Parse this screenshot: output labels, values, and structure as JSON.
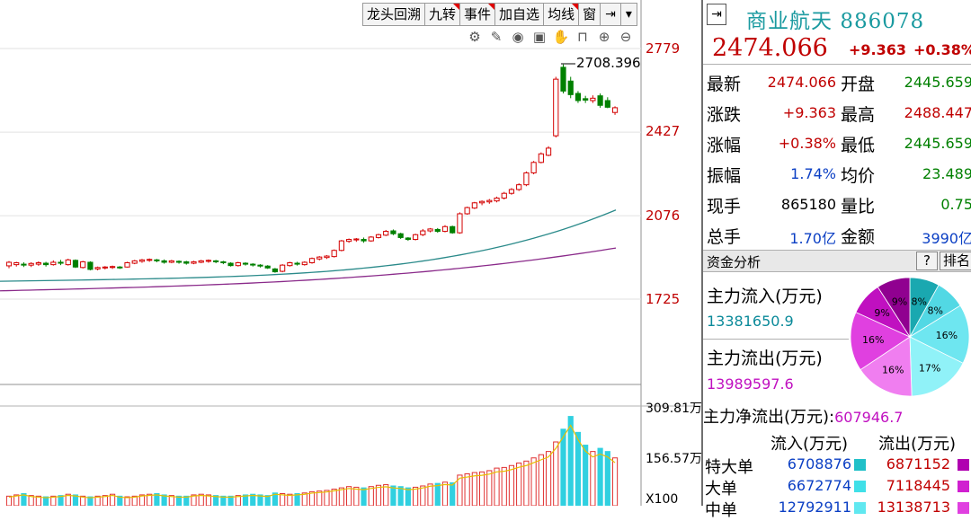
{
  "toolbar": {
    "items": [
      "龙头回溯",
      "九转",
      "事件",
      "加自选",
      "均线",
      "窗"
    ]
  },
  "price_axis": [
    "2779",
    "2427",
    "2076",
    "1725"
  ],
  "volume_axis": [
    "309.81万",
    "156.57万",
    "X100"
  ],
  "peak_label": "2708.396",
  "chart_data": {
    "type": "candlestick",
    "price_axis_ticks": [
      2779,
      2427,
      2076,
      1725
    ],
    "volume_axis_ticks": [
      "309.81万",
      "156.57万"
    ],
    "peak_annotation": 2708.396,
    "colors": {
      "up": "#d40000",
      "down": "#008000",
      "ma_a": "#2a8a8a",
      "ma_b": "#8a2a8a",
      "vol_up": "#e03030",
      "vol_down": "#30d0e0",
      "vol_ma": "#e8c000"
    },
    "candles": [
      [
        1865,
        1880,
        1855,
        1885
      ],
      [
        1870,
        1878,
        1862,
        1882
      ],
      [
        1872,
        1868,
        1860,
        1880
      ],
      [
        1868,
        1875,
        1860,
        1880
      ],
      [
        1872,
        1878,
        1865,
        1884
      ],
      [
        1876,
        1870,
        1862,
        1882
      ],
      [
        1870,
        1880,
        1866,
        1888
      ],
      [
        1880,
        1876,
        1868,
        1890
      ],
      [
        1870,
        1890,
        1866,
        1895
      ],
      [
        1888,
        1860,
        1856,
        1892
      ],
      [
        1858,
        1882,
        1854,
        1886
      ],
      [
        1880,
        1850,
        1846,
        1884
      ],
      [
        1852,
        1858,
        1846,
        1862
      ],
      [
        1856,
        1860,
        1850,
        1864
      ],
      [
        1858,
        1862,
        1852,
        1866
      ],
      [
        1860,
        1858,
        1852,
        1864
      ],
      [
        1860,
        1878,
        1858,
        1882
      ],
      [
        1876,
        1886,
        1872,
        1890
      ],
      [
        1884,
        1890,
        1878,
        1894
      ],
      [
        1888,
        1892,
        1882,
        1896
      ],
      [
        1890,
        1888,
        1880,
        1894
      ],
      [
        1886,
        1880,
        1874,
        1892
      ],
      [
        1880,
        1886,
        1876,
        1890
      ],
      [
        1884,
        1880,
        1874,
        1888
      ],
      [
        1882,
        1876,
        1870,
        1886
      ],
      [
        1876,
        1882,
        1872,
        1886
      ],
      [
        1880,
        1886,
        1876,
        1890
      ],
      [
        1884,
        1888,
        1878,
        1892
      ],
      [
        1886,
        1882,
        1876,
        1890
      ],
      [
        1882,
        1878,
        1872,
        1886
      ],
      [
        1876,
        1866,
        1862,
        1880
      ],
      [
        1866,
        1878,
        1862,
        1882
      ],
      [
        1876,
        1872,
        1866,
        1880
      ],
      [
        1872,
        1870,
        1862,
        1876
      ],
      [
        1868,
        1864,
        1858,
        1872
      ],
      [
        1864,
        1856,
        1852,
        1868
      ],
      [
        1852,
        1840,
        1836,
        1856
      ],
      [
        1842,
        1868,
        1838,
        1872
      ],
      [
        1866,
        1878,
        1862,
        1882
      ],
      [
        1876,
        1872,
        1866,
        1882
      ],
      [
        1870,
        1880,
        1866,
        1884
      ],
      [
        1878,
        1896,
        1874,
        1900
      ],
      [
        1894,
        1902,
        1888,
        1906
      ],
      [
        1900,
        1906,
        1894,
        1910
      ],
      [
        1904,
        1930,
        1900,
        1934
      ],
      [
        1930,
        1970,
        1926,
        1974
      ],
      [
        1968,
        1976,
        1962,
        1980
      ],
      [
        1974,
        1978,
        1966,
        1982
      ],
      [
        1976,
        1970,
        1962,
        1984
      ],
      [
        1970,
        1986,
        1966,
        1990
      ],
      [
        1984,
        1996,
        1980,
        2000
      ],
      [
        1994,
        2010,
        1990,
        2016
      ],
      [
        2012,
        2000,
        1994,
        2018
      ],
      [
        2000,
        1984,
        1978,
        2004
      ],
      [
        1982,
        1976,
        1970,
        1986
      ],
      [
        1976,
        1996,
        1972,
        2000
      ],
      [
        1996,
        2012,
        1990,
        2020
      ],
      [
        2012,
        2020,
        2006,
        2024
      ],
      [
        2018,
        2010,
        2004,
        2024
      ],
      [
        2010,
        2030,
        2006,
        2036
      ],
      [
        2030,
        2004,
        2000,
        2034
      ],
      [
        2004,
        2084,
        2000,
        2090
      ],
      [
        2084,
        2110,
        2080,
        2114
      ],
      [
        2108,
        2130,
        2104,
        2134
      ],
      [
        2130,
        2136,
        2120,
        2140
      ],
      [
        2134,
        2140,
        2126,
        2146
      ],
      [
        2138,
        2150,
        2132,
        2156
      ],
      [
        2150,
        2170,
        2144,
        2176
      ],
      [
        2170,
        2186,
        2164,
        2192
      ],
      [
        2186,
        2206,
        2180,
        2212
      ],
      [
        2206,
        2256,
        2200,
        2262
      ],
      [
        2256,
        2300,
        2250,
        2306
      ],
      [
        2300,
        2336,
        2296,
        2342
      ],
      [
        2330,
        2360,
        2326,
        2368
      ],
      [
        2412,
        2650,
        2405,
        2660
      ],
      [
        2700,
        2600,
        2590,
        2712
      ],
      [
        2642,
        2585,
        2570,
        2660
      ],
      [
        2590,
        2560,
        2550,
        2600
      ],
      [
        2568,
        2562,
        2550,
        2580
      ],
      [
        2560,
        2570,
        2550,
        2582
      ],
      [
        2580,
        2540,
        2530,
        2590
      ],
      [
        2560,
        2532,
        2528,
        2574
      ],
      [
        2510,
        2530,
        2500,
        2536
      ]
    ],
    "volumes": [
      30,
      34,
      38,
      32,
      30,
      28,
      30,
      32,
      36,
      34,
      30,
      28,
      30,
      32,
      36,
      30,
      28,
      30,
      34,
      36,
      38,
      34,
      32,
      30,
      30,
      34,
      36,
      34,
      32,
      30,
      30,
      32,
      34,
      36,
      34,
      32,
      40,
      38,
      36,
      38,
      40,
      44,
      46,
      48,
      52,
      56,
      60,
      58,
      56,
      60,
      64,
      66,
      62,
      60,
      56,
      58,
      62,
      68,
      70,
      74,
      72,
      96,
      100,
      104,
      106,
      110,
      118,
      120,
      126,
      134,
      140,
      150,
      160,
      170,
      200,
      240,
      280,
      230,
      190,
      170,
      180,
      170,
      150
    ]
  },
  "panel": {
    "title": "商业航天",
    "code": "886078",
    "price": "2474.066",
    "change": "+9.363",
    "change_pct": "+0.38%",
    "quotes": [
      {
        "l1": "最新",
        "v1": "2474.066",
        "c1": "red",
        "l2": "开盘",
        "v2": "2445.659",
        "c2": "green"
      },
      {
        "l1": "涨跌",
        "v1": "+9.363",
        "c1": "red",
        "l2": "最高",
        "v2": "2488.447",
        "c2": "red"
      },
      {
        "l1": "涨幅",
        "v1": "+0.38%",
        "c1": "red",
        "l2": "最低",
        "v2": "2445.659",
        "c2": "green"
      },
      {
        "l1": "振幅",
        "v1": "1.74%",
        "c1": "blue",
        "l2": "均价",
        "v2": "23.489",
        "c2": "green"
      },
      {
        "l1": "现手",
        "v1": "865180",
        "c1": "blk",
        "l2": "量比",
        "v2": "0.75",
        "c2": "green"
      },
      {
        "l1": "总手",
        "v1": "1.70亿",
        "c1": "blue",
        "l2": "金额",
        "v2": "3990亿",
        "c2": "blue"
      }
    ],
    "fund_title": "资金分析",
    "fund_help": "?",
    "fund_rank": "排名",
    "inflow_label": "主力流入(万元)",
    "inflow_value": "13381650.9",
    "outflow_label": "主力流出(万元)",
    "outflow_value": "13989597.6",
    "net_label": "主力净流出(万元):",
    "net_value": "607946.7",
    "col_in": "流入(万元)",
    "col_out": "流出(万元)",
    "rows": [
      {
        "name": "特大单",
        "in": "6708876",
        "out": "6871152"
      },
      {
        "name": "大单",
        "in": "6672774",
        "out": "7118445"
      },
      {
        "name": "中单",
        "in": "12792911",
        "out": "13138713"
      }
    ],
    "pie": [
      {
        "label": "8%",
        "value": 8,
        "color": "#1aa8b0"
      },
      {
        "label": "8%",
        "value": 8,
        "color": "#52d8e4"
      },
      {
        "label": "16%",
        "value": 16,
        "color": "#6ee6f0"
      },
      {
        "label": "17%",
        "value": 17,
        "color": "#90f2f8"
      },
      {
        "label": "16%",
        "value": 16,
        "color": "#f07ef0"
      },
      {
        "label": "16%",
        "value": 16,
        "color": "#e040e0"
      },
      {
        "label": "9%",
        "value": 9,
        "color": "#c010c0"
      },
      {
        "label": "9%",
        "value": 9,
        "color": "#900090"
      }
    ]
  }
}
